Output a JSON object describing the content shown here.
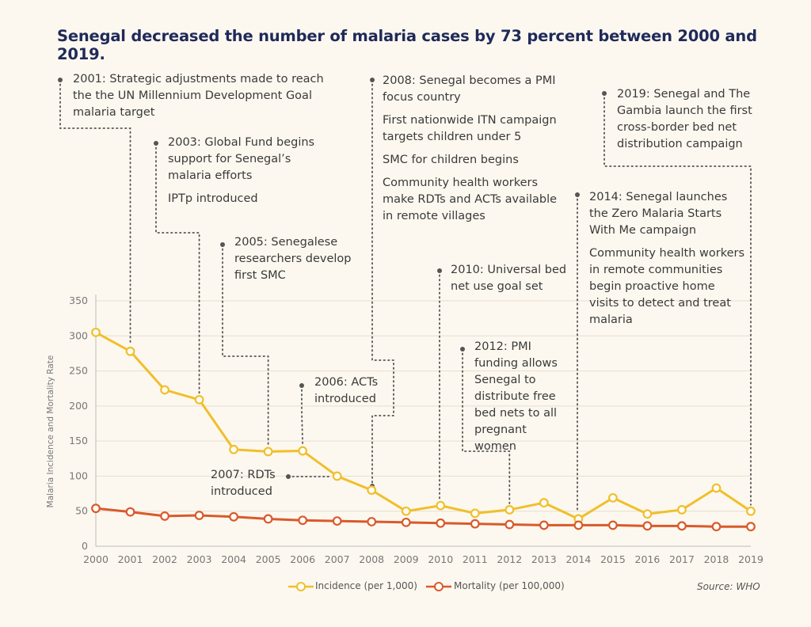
{
  "title": "Senegal decreased the number of malaria cases by 73 percent between 2000 and 2019.",
  "source": "Source: WHO",
  "chart_data": {
    "type": "line",
    "x": [
      2000,
      2001,
      2002,
      2003,
      2004,
      2005,
      2006,
      2007,
      2008,
      2009,
      2010,
      2011,
      2012,
      2013,
      2014,
      2015,
      2016,
      2017,
      2018,
      2019
    ],
    "xlabels": [
      "2000",
      "2001",
      "2002",
      "2003",
      "2004",
      "2005",
      "2006",
      "2007",
      "2008",
      "2009",
      "2010",
      "2011",
      "2012",
      "2013",
      "2014",
      "2015",
      "2016",
      "2017",
      "2018",
      "2019"
    ],
    "yticks": [
      "0",
      "50",
      "100",
      "150",
      "200",
      "250",
      "300",
      "350"
    ],
    "ylabel": "Malaria Incidence and Mortality Rate",
    "ylim": [
      0,
      350
    ],
    "grid": true,
    "legend_position": "bottom",
    "series": [
      {
        "name": "Incidence (per 1,000)",
        "color": "#f0bf2c",
        "values": [
          305,
          278,
          223,
          209,
          138,
          135,
          136,
          100,
          80,
          50,
          58,
          47,
          52,
          62,
          39,
          69,
          46,
          52,
          83,
          50
        ]
      },
      {
        "name": "Mortality (per 100,000)",
        "color": "#d95a2b",
        "values": [
          54,
          49,
          43,
          44,
          42,
          39,
          37,
          36,
          35,
          34,
          33,
          32,
          31,
          30,
          30,
          30,
          29,
          29,
          28,
          28
        ]
      }
    ],
    "annotations": [
      {
        "year": 2001,
        "paragraphs": [
          "2001: Strategic adjustments made to reach the the UN Millennium Development Goal malaria target"
        ]
      },
      {
        "year": 2003,
        "paragraphs": [
          "2003: Global Fund begins support for Senegal’s malaria efforts",
          "IPTp introduced"
        ]
      },
      {
        "year": 2005,
        "paragraphs": [
          "2005: Senegalese researchers develop first SMC"
        ]
      },
      {
        "year": 2006,
        "paragraphs": [
          "2006: ACTs introduced"
        ]
      },
      {
        "year": 2007,
        "paragraphs": [
          "2007: RDTs introduced"
        ]
      },
      {
        "year": 2008,
        "paragraphs": [
          "2008: Senegal becomes a PMI focus country",
          "First nationwide ITN campaign targets children under 5",
          "SMC for children begins",
          "Community health workers make RDTs and ACTs available in remote villages"
        ]
      },
      {
        "year": 2010,
        "paragraphs": [
          "2010: Universal bed net use goal set"
        ]
      },
      {
        "year": 2012,
        "paragraphs": [
          "2012: PMI funding allows Senegal to distribute free bed nets to all pregnant women"
        ]
      },
      {
        "year": 2014,
        "paragraphs": [
          "2014: Senegal launches the Zero Malaria Starts With Me campaign",
          "Community health workers in remote communities begin proactive home visits to detect and treat malaria"
        ]
      },
      {
        "year": 2019,
        "paragraphs": [
          "2019: Senegal and The Gambia launch the first cross-border bed net distribution campaign"
        ]
      }
    ]
  }
}
